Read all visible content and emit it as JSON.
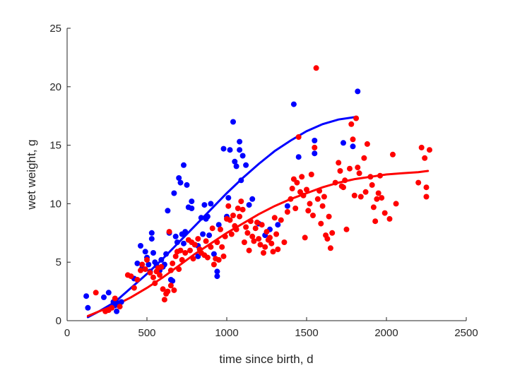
{
  "chart_data": {
    "type": "scatter",
    "title": "",
    "xlabel": "time since birth, d",
    "ylabel": "wet weight, g",
    "xlim": [
      0,
      2500
    ],
    "ylim": [
      0,
      25
    ],
    "xticks": [
      0,
      500,
      1000,
      1500,
      2000,
      2500
    ],
    "yticks": [
      0,
      5,
      10,
      15,
      20,
      25
    ],
    "grid": false,
    "legend": "none",
    "series": [
      {
        "color": "#0000ff",
        "points": [
          [
            120,
            2.1
          ],
          [
            130,
            1.1
          ],
          [
            230,
            2.0
          ],
          [
            260,
            2.4
          ],
          [
            290,
            1.6
          ],
          [
            300,
            1.3
          ],
          [
            310,
            0.8
          ],
          [
            320,
            1.5
          ],
          [
            340,
            1.6
          ],
          [
            420,
            3.6
          ],
          [
            440,
            4.9
          ],
          [
            460,
            6.4
          ],
          [
            470,
            4.5
          ],
          [
            490,
            5.9
          ],
          [
            500,
            5.4
          ],
          [
            510,
            4.8
          ],
          [
            520,
            4.2
          ],
          [
            530,
            7.5
          ],
          [
            530,
            7.0
          ],
          [
            540,
            5.8
          ],
          [
            550,
            5.0
          ],
          [
            560,
            4.7
          ],
          [
            580,
            4.3
          ],
          [
            590,
            5.2
          ],
          [
            600,
            4.6
          ],
          [
            610,
            4.8
          ],
          [
            620,
            5.7
          ],
          [
            630,
            9.4
          ],
          [
            640,
            7.5
          ],
          [
            650,
            3.5
          ],
          [
            660,
            3.4
          ],
          [
            670,
            10.9
          ],
          [
            680,
            7.2
          ],
          [
            690,
            6.7
          ],
          [
            700,
            12.2
          ],
          [
            710,
            11.8
          ],
          [
            720,
            7.4
          ],
          [
            730,
            13.3
          ],
          [
            730,
            6.6
          ],
          [
            740,
            7.6
          ],
          [
            750,
            11.6
          ],
          [
            760,
            9.7
          ],
          [
            780,
            10.2
          ],
          [
            780,
            9.6
          ],
          [
            800,
            6.5
          ],
          [
            820,
            6.4
          ],
          [
            820,
            5.5
          ],
          [
            840,
            8.8
          ],
          [
            850,
            7.4
          ],
          [
            860,
            9.9
          ],
          [
            870,
            8.7
          ],
          [
            880,
            8.9
          ],
          [
            890,
            7.3
          ],
          [
            900,
            10.0
          ],
          [
            920,
            5.7
          ],
          [
            940,
            4.2
          ],
          [
            940,
            3.8
          ],
          [
            950,
            8.2
          ],
          [
            980,
            14.7
          ],
          [
            1000,
            8.9
          ],
          [
            1010,
            10.5
          ],
          [
            1020,
            14.6
          ],
          [
            1040,
            17.0
          ],
          [
            1050,
            13.6
          ],
          [
            1060,
            13.2
          ],
          [
            1080,
            15.3
          ],
          [
            1080,
            14.6
          ],
          [
            1090,
            12.0
          ],
          [
            1100,
            14.1
          ],
          [
            1120,
            13.3
          ],
          [
            1140,
            9.9
          ],
          [
            1160,
            10.4
          ],
          [
            1200,
            8.3
          ],
          [
            1240,
            7.3
          ],
          [
            1270,
            7.8
          ],
          [
            1320,
            8.2
          ],
          [
            1380,
            9.8
          ],
          [
            1420,
            18.5
          ],
          [
            1450,
            14.0
          ],
          [
            1550,
            15.4
          ],
          [
            1550,
            14.3
          ],
          [
            1730,
            15.2
          ],
          [
            1790,
            14.9
          ],
          [
            1820,
            19.6
          ]
        ]
      },
      {
        "color": "#ff0000",
        "points": [
          [
            180,
            2.4
          ],
          [
            240,
            0.8
          ],
          [
            260,
            0.9
          ],
          [
            280,
            1.1
          ],
          [
            300,
            1.9
          ],
          [
            330,
            1.2
          ],
          [
            380,
            3.9
          ],
          [
            400,
            3.8
          ],
          [
            420,
            2.8
          ],
          [
            440,
            3.5
          ],
          [
            460,
            4.3
          ],
          [
            470,
            4.8
          ],
          [
            490,
            4.4
          ],
          [
            500,
            5.2
          ],
          [
            520,
            4.1
          ],
          [
            540,
            3.7
          ],
          [
            550,
            3.2
          ],
          [
            560,
            4.2
          ],
          [
            570,
            4.5
          ],
          [
            580,
            3.9
          ],
          [
            590,
            4.6
          ],
          [
            600,
            2.7
          ],
          [
            610,
            1.8
          ],
          [
            620,
            2.3
          ],
          [
            630,
            2.5
          ],
          [
            640,
            7.6
          ],
          [
            650,
            4.3
          ],
          [
            650,
            3.0
          ],
          [
            660,
            4.9
          ],
          [
            670,
            2.6
          ],
          [
            680,
            5.5
          ],
          [
            690,
            5.9
          ],
          [
            700,
            4.4
          ],
          [
            710,
            6.0
          ],
          [
            720,
            5.2
          ],
          [
            740,
            5.8
          ],
          [
            760,
            6.9
          ],
          [
            770,
            6.0
          ],
          [
            780,
            6.7
          ],
          [
            790,
            5.3
          ],
          [
            800,
            6.5
          ],
          [
            820,
            7.0
          ],
          [
            830,
            6.1
          ],
          [
            840,
            5.8
          ],
          [
            860,
            5.6
          ],
          [
            870,
            6.8
          ],
          [
            880,
            5.4
          ],
          [
            900,
            6.3
          ],
          [
            910,
            7.9
          ],
          [
            920,
            4.8
          ],
          [
            930,
            5.3
          ],
          [
            940,
            6.7
          ],
          [
            950,
            5.2
          ],
          [
            960,
            7.8
          ],
          [
            970,
            6.3
          ],
          [
            980,
            5.5
          ],
          [
            990,
            7.2
          ],
          [
            1000,
            8.7
          ],
          [
            1010,
            9.8
          ],
          [
            1020,
            8.6
          ],
          [
            1030,
            7.4
          ],
          [
            1040,
            9.0
          ],
          [
            1050,
            8.1
          ],
          [
            1060,
            7.8
          ],
          [
            1070,
            9.6
          ],
          [
            1080,
            8.9
          ],
          [
            1090,
            10.2
          ],
          [
            1100,
            9.5
          ],
          [
            1110,
            6.7
          ],
          [
            1120,
            8.0
          ],
          [
            1130,
            7.5
          ],
          [
            1140,
            6.0
          ],
          [
            1150,
            8.5
          ],
          [
            1160,
            7.2
          ],
          [
            1170,
            6.8
          ],
          [
            1180,
            7.9
          ],
          [
            1190,
            8.4
          ],
          [
            1200,
            7.0
          ],
          [
            1210,
            6.5
          ],
          [
            1220,
            8.2
          ],
          [
            1230,
            5.8
          ],
          [
            1240,
            6.3
          ],
          [
            1250,
            7.6
          ],
          [
            1260,
            6.9
          ],
          [
            1270,
            7.1
          ],
          [
            1280,
            6.6
          ],
          [
            1290,
            5.9
          ],
          [
            1300,
            8.8
          ],
          [
            1310,
            7.4
          ],
          [
            1320,
            6.1
          ],
          [
            1340,
            8.6
          ],
          [
            1360,
            6.7
          ],
          [
            1380,
            9.3
          ],
          [
            1400,
            10.4
          ],
          [
            1410,
            11.3
          ],
          [
            1420,
            12.1
          ],
          [
            1430,
            9.6
          ],
          [
            1440,
            11.8
          ],
          [
            1450,
            15.7
          ],
          [
            1460,
            11.0
          ],
          [
            1470,
            12.3
          ],
          [
            1480,
            10.7
          ],
          [
            1490,
            7.1
          ],
          [
            1500,
            11.2
          ],
          [
            1510,
            9.4
          ],
          [
            1520,
            10.0
          ],
          [
            1530,
            12.5
          ],
          [
            1540,
            9.0
          ],
          [
            1550,
            14.8
          ],
          [
            1560,
            21.6
          ],
          [
            1570,
            10.4
          ],
          [
            1580,
            11.1
          ],
          [
            1590,
            8.3
          ],
          [
            1600,
            9.8
          ],
          [
            1610,
            10.6
          ],
          [
            1620,
            7.3
          ],
          [
            1630,
            7.0
          ],
          [
            1640,
            8.9
          ],
          [
            1650,
            6.2
          ],
          [
            1660,
            7.5
          ],
          [
            1680,
            11.8
          ],
          [
            1700,
            13.5
          ],
          [
            1710,
            12.8
          ],
          [
            1720,
            11.5
          ],
          [
            1730,
            11.4
          ],
          [
            1740,
            12.0
          ],
          [
            1750,
            7.8
          ],
          [
            1770,
            13.0
          ],
          [
            1780,
            16.8
          ],
          [
            1790,
            15.5
          ],
          [
            1800,
            10.7
          ],
          [
            1810,
            17.3
          ],
          [
            1820,
            13.1
          ],
          [
            1830,
            12.6
          ],
          [
            1840,
            10.6
          ],
          [
            1860,
            13.9
          ],
          [
            1870,
            11.0
          ],
          [
            1880,
            15.1
          ],
          [
            1900,
            12.3
          ],
          [
            1910,
            11.6
          ],
          [
            1920,
            9.7
          ],
          [
            1930,
            8.5
          ],
          [
            1940,
            10.4
          ],
          [
            1950,
            10.9
          ],
          [
            1960,
            12.4
          ],
          [
            1970,
            10.5
          ],
          [
            1990,
            9.2
          ],
          [
            2020,
            8.7
          ],
          [
            2040,
            14.2
          ],
          [
            2060,
            10.0
          ],
          [
            2200,
            11.8
          ],
          [
            2220,
            14.8
          ],
          [
            2240,
            13.9
          ],
          [
            2250,
            11.4
          ],
          [
            2250,
            10.6
          ],
          [
            2270,
            14.6
          ]
        ]
      }
    ],
    "fit_lines": [
      {
        "color": "#0000ff",
        "points": [
          [
            130,
            0.3
          ],
          [
            200,
            0.8
          ],
          [
            300,
            1.6
          ],
          [
            400,
            2.8
          ],
          [
            500,
            4.0
          ],
          [
            600,
            5.3
          ],
          [
            700,
            6.7
          ],
          [
            800,
            8.1
          ],
          [
            900,
            9.5
          ],
          [
            1000,
            10.9
          ],
          [
            1100,
            12.2
          ],
          [
            1200,
            13.4
          ],
          [
            1300,
            14.5
          ],
          [
            1400,
            15.4
          ],
          [
            1500,
            16.2
          ],
          [
            1600,
            16.8
          ],
          [
            1700,
            17.2
          ],
          [
            1800,
            17.4
          ]
        ]
      },
      {
        "color": "#ff0000",
        "points": [
          [
            130,
            0.4
          ],
          [
            200,
            0.8
          ],
          [
            300,
            1.3
          ],
          [
            400,
            2.0
          ],
          [
            500,
            2.8
          ],
          [
            600,
            3.7
          ],
          [
            700,
            4.7
          ],
          [
            800,
            5.7
          ],
          [
            900,
            6.6
          ],
          [
            1000,
            7.5
          ],
          [
            1100,
            8.3
          ],
          [
            1200,
            9.1
          ],
          [
            1300,
            9.8
          ],
          [
            1400,
            10.4
          ],
          [
            1500,
            10.9
          ],
          [
            1600,
            11.4
          ],
          [
            1700,
            11.8
          ],
          [
            1800,
            12.1
          ],
          [
            1900,
            12.3
          ],
          [
            2000,
            12.5
          ],
          [
            2100,
            12.6
          ],
          [
            2200,
            12.7
          ],
          [
            2260,
            12.8
          ]
        ]
      }
    ]
  }
}
